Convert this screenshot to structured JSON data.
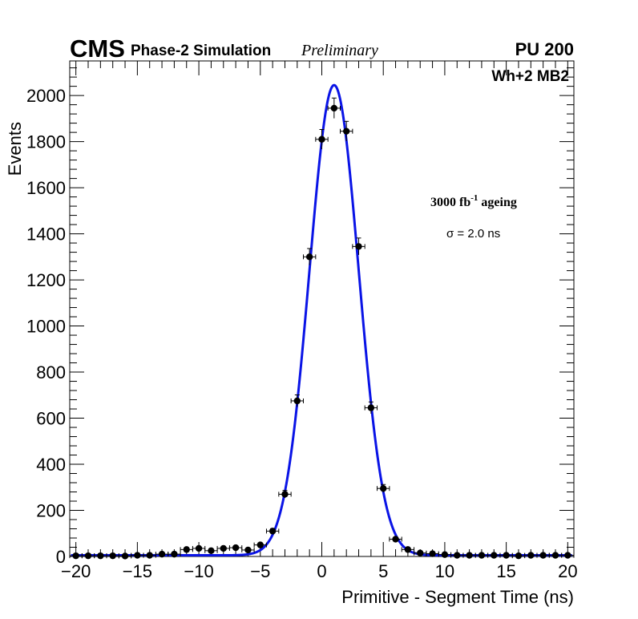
{
  "chart_data": {
    "type": "scatter",
    "title": "",
    "xlabel": "Primitive - Segment Time (ns)",
    "ylabel": "Events",
    "xlim": [
      -20.5,
      20.5
    ],
    "ylim": [
      0,
      2150
    ],
    "xticks": [
      -20,
      -15,
      -10,
      -5,
      0,
      5,
      10,
      15,
      20
    ],
    "xtick_labels": [
      "−20",
      "−15",
      "−10",
      "−5",
      "0",
      "5",
      "10",
      "15",
      "20"
    ],
    "yticks": [
      0,
      200,
      400,
      600,
      800,
      1000,
      1200,
      1400,
      1600,
      1800,
      2000
    ],
    "ytick_labels": [
      "0",
      "200",
      "400",
      "600",
      "800",
      "1000",
      "1200",
      "1400",
      "1600",
      "1800",
      "2000"
    ],
    "series": [
      {
        "name": "data",
        "x": [
          -20,
          -19,
          -18,
          -17,
          -16,
          -15,
          -14,
          -13,
          -12,
          -11,
          -10,
          -9,
          -8,
          -7,
          -6,
          -5,
          -4,
          -3,
          -2,
          -1,
          0,
          1,
          2,
          3,
          4,
          5,
          6,
          7,
          8,
          9,
          10,
          11,
          12,
          13,
          14,
          15,
          16,
          17,
          18,
          19,
          20
        ],
        "y": [
          3,
          3,
          3,
          3,
          2,
          5,
          5,
          10,
          10,
          30,
          35,
          25,
          35,
          38,
          28,
          50,
          110,
          270,
          675,
          1300,
          1810,
          1945,
          1845,
          1345,
          645,
          295,
          75,
          30,
          15,
          12,
          8,
          5,
          5,
          5,
          5,
          5,
          3,
          5,
          5,
          5,
          5
        ]
      },
      {
        "name": "gaussian fit",
        "style": "line",
        "color": "#0a14e6",
        "amplitude": 2040,
        "mean": 1.0,
        "sigma": 2.0,
        "baseline": 5
      }
    ],
    "header": {
      "experiment": "CMS",
      "label": "Phase-2 Simulation",
      "status": "Preliminary",
      "pileup": "PU 200",
      "region": "Wh+2 MB2"
    },
    "annotations": {
      "ageing_prefix": "3000 fb",
      "ageing_sup": "-1",
      "ageing_suffix": " ageing",
      "sigma_label": "σ = 2.0 ns"
    }
  }
}
